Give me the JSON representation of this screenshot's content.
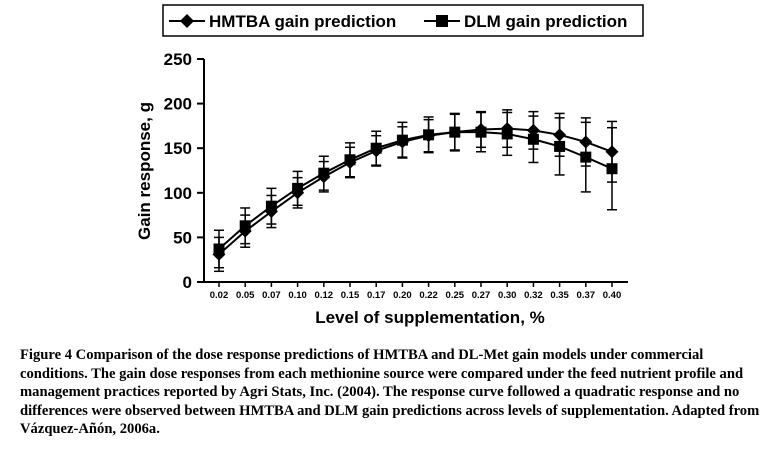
{
  "chart_data": {
    "type": "line",
    "title": "",
    "xlabel": "Level of supplementation, %",
    "ylabel": "Gain response, g",
    "categories": [
      "0.02",
      "0.05",
      "0.07",
      "0.10",
      "0.12",
      "0.15",
      "0.17",
      "0.20",
      "0.22",
      "0.25",
      "0.27",
      "0.30",
      "0.32",
      "0.35",
      "0.37",
      "0.40"
    ],
    "ylim": [
      0,
      250
    ],
    "yticks": [
      "0",
      "50",
      "100",
      "150",
      "200",
      "250"
    ],
    "legend_position": "top",
    "grid": false,
    "series": [
      {
        "name": "HMTBA gain prediction",
        "marker": "diamond",
        "values": [
          31,
          57,
          79,
          100,
          118,
          134,
          147,
          157,
          164,
          168,
          171,
          172,
          170,
          165,
          157,
          146
        ],
        "error": [
          19,
          18,
          18,
          17,
          17,
          17,
          17,
          17,
          18,
          20,
          20,
          21,
          21,
          24,
          27,
          34
        ]
      },
      {
        "name": "DLM gain prediction",
        "marker": "square",
        "values": [
          37,
          63,
          85,
          105,
          122,
          137,
          150,
          159,
          165,
          168,
          168,
          166,
          160,
          152,
          140,
          127
        ],
        "error": [
          21,
          20,
          20,
          19,
          19,
          19,
          19,
          20,
          20,
          21,
          22,
          24,
          26,
          32,
          39,
          46
        ]
      }
    ]
  },
  "caption": {
    "text": "Figure 4 Comparison of the dose response predictions of HMTBA and DL-Met gain models under commercial conditions. The gain dose responses from each methionine source were compared under the feed nutrient profile and management practices reported by Agri Stats, Inc. (2004). The response curve followed a quadratic response and no differences were observed between HMTBA and DLM gain predictions across levels of supplementation. Adapted from Vázquez-Añón, 2006a."
  }
}
